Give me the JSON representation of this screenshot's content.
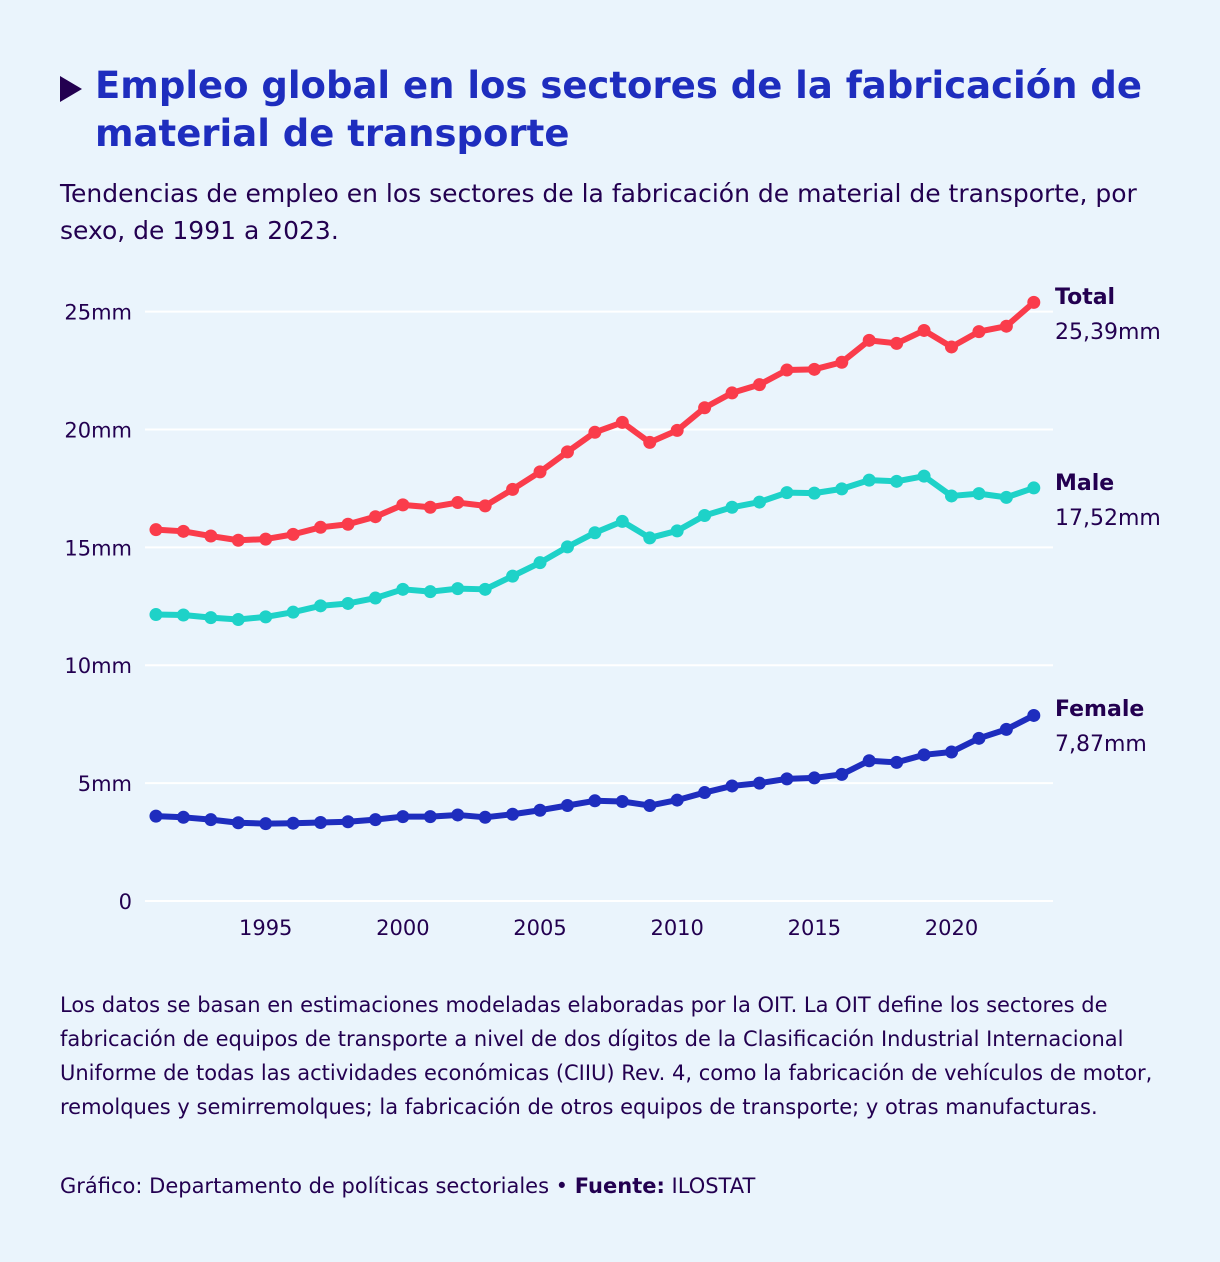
{
  "header": {
    "title": "Empleo global en los sectores de la fabricación de material de transporte",
    "subtitle": "Tendencias de empleo en los sectores de la fabricación de material de transporte, por sexo, de 1991 a 2023."
  },
  "footer": {
    "note": "Los datos se basan en estimaciones modeladas elaboradas por la OIT. La OIT define los sectores de fabricación de equipos de transporte a nivel de dos dígitos de la Clasificación Industrial Internacional Uniforme de todas las actividades económicas (CIIU) Rev. 4, como la fabricación de vehículos de motor, remolques y semirremolques; la fabricación de otros equipos de transporte; y otras manufacturas.",
    "credit_prefix": "Gráfico: Departamento de políticas sectoriales • ",
    "source_label": "Fuente:",
    "source_value": " ILOSTAT"
  },
  "colors": {
    "background": "#eaf4fc",
    "title": "#1e2dbe",
    "text": "#230050",
    "grid": "#ffffff",
    "total": "#fa3c4b",
    "male": "#1ed2c8",
    "female": "#1e2dbe"
  },
  "chart_data": {
    "type": "line",
    "title": "Empleo global en los sectores de la fabricación de material de transporte",
    "x": [
      1991,
      1992,
      1993,
      1994,
      1995,
      1996,
      1997,
      1998,
      1999,
      2000,
      2001,
      2002,
      2003,
      2004,
      2005,
      2006,
      2007,
      2008,
      2009,
      2010,
      2011,
      2012,
      2013,
      2014,
      2015,
      2016,
      2017,
      2018,
      2019,
      2020,
      2021,
      2022,
      2023
    ],
    "xlim": [
      1990.6,
      2023.7
    ],
    "ylim": [
      0,
      26
    ],
    "x_ticks": [
      1995,
      2000,
      2005,
      2010,
      2015,
      2020
    ],
    "x_tick_labels": [
      "1995",
      "2000",
      "2005",
      "2010",
      "2015",
      "2020"
    ],
    "y_ticks": [
      0,
      5,
      10,
      15,
      20,
      25
    ],
    "y_tick_labels": [
      "0",
      "5mm",
      "10mm",
      "15mm",
      "20mm",
      "25mm"
    ],
    "grid": true,
    "legend": "end-of-line labels",
    "series": [
      {
        "key": "total",
        "name": "Total",
        "end_label": "25,39mm",
        "color": "#fa3c4b",
        "values": [
          15.75,
          15.68,
          15.48,
          15.3,
          15.35,
          15.55,
          15.85,
          15.98,
          16.3,
          16.8,
          16.7,
          16.9,
          16.76,
          17.46,
          18.2,
          19.05,
          19.88,
          20.3,
          19.45,
          19.96,
          20.92,
          21.55,
          21.9,
          22.52,
          22.55,
          22.85,
          23.78,
          23.65,
          24.2,
          23.5,
          24.15,
          24.38,
          25.39
        ]
      },
      {
        "key": "male",
        "name": "Male",
        "end_label": "17,52mm",
        "color": "#1ed2c8",
        "values": [
          12.15,
          12.13,
          12.02,
          11.94,
          12.05,
          12.25,
          12.52,
          12.62,
          12.85,
          13.22,
          13.12,
          13.25,
          13.22,
          13.78,
          14.35,
          15.02,
          15.62,
          16.1,
          15.4,
          15.7,
          16.35,
          16.7,
          16.92,
          17.32,
          17.3,
          17.48,
          17.85,
          17.8,
          18.02,
          17.18,
          17.28,
          17.12,
          17.52
        ]
      },
      {
        "key": "female",
        "name": "Female",
        "end_label": "7,87mm",
        "color": "#1e2dbe",
        "values": [
          3.6,
          3.55,
          3.45,
          3.32,
          3.28,
          3.3,
          3.33,
          3.36,
          3.45,
          3.58,
          3.58,
          3.65,
          3.55,
          3.68,
          3.85,
          4.05,
          4.25,
          4.22,
          4.05,
          4.28,
          4.6,
          4.88,
          5.0,
          5.18,
          5.22,
          5.37,
          5.95,
          5.88,
          6.2,
          6.32,
          6.9,
          7.28,
          7.87
        ]
      }
    ]
  }
}
